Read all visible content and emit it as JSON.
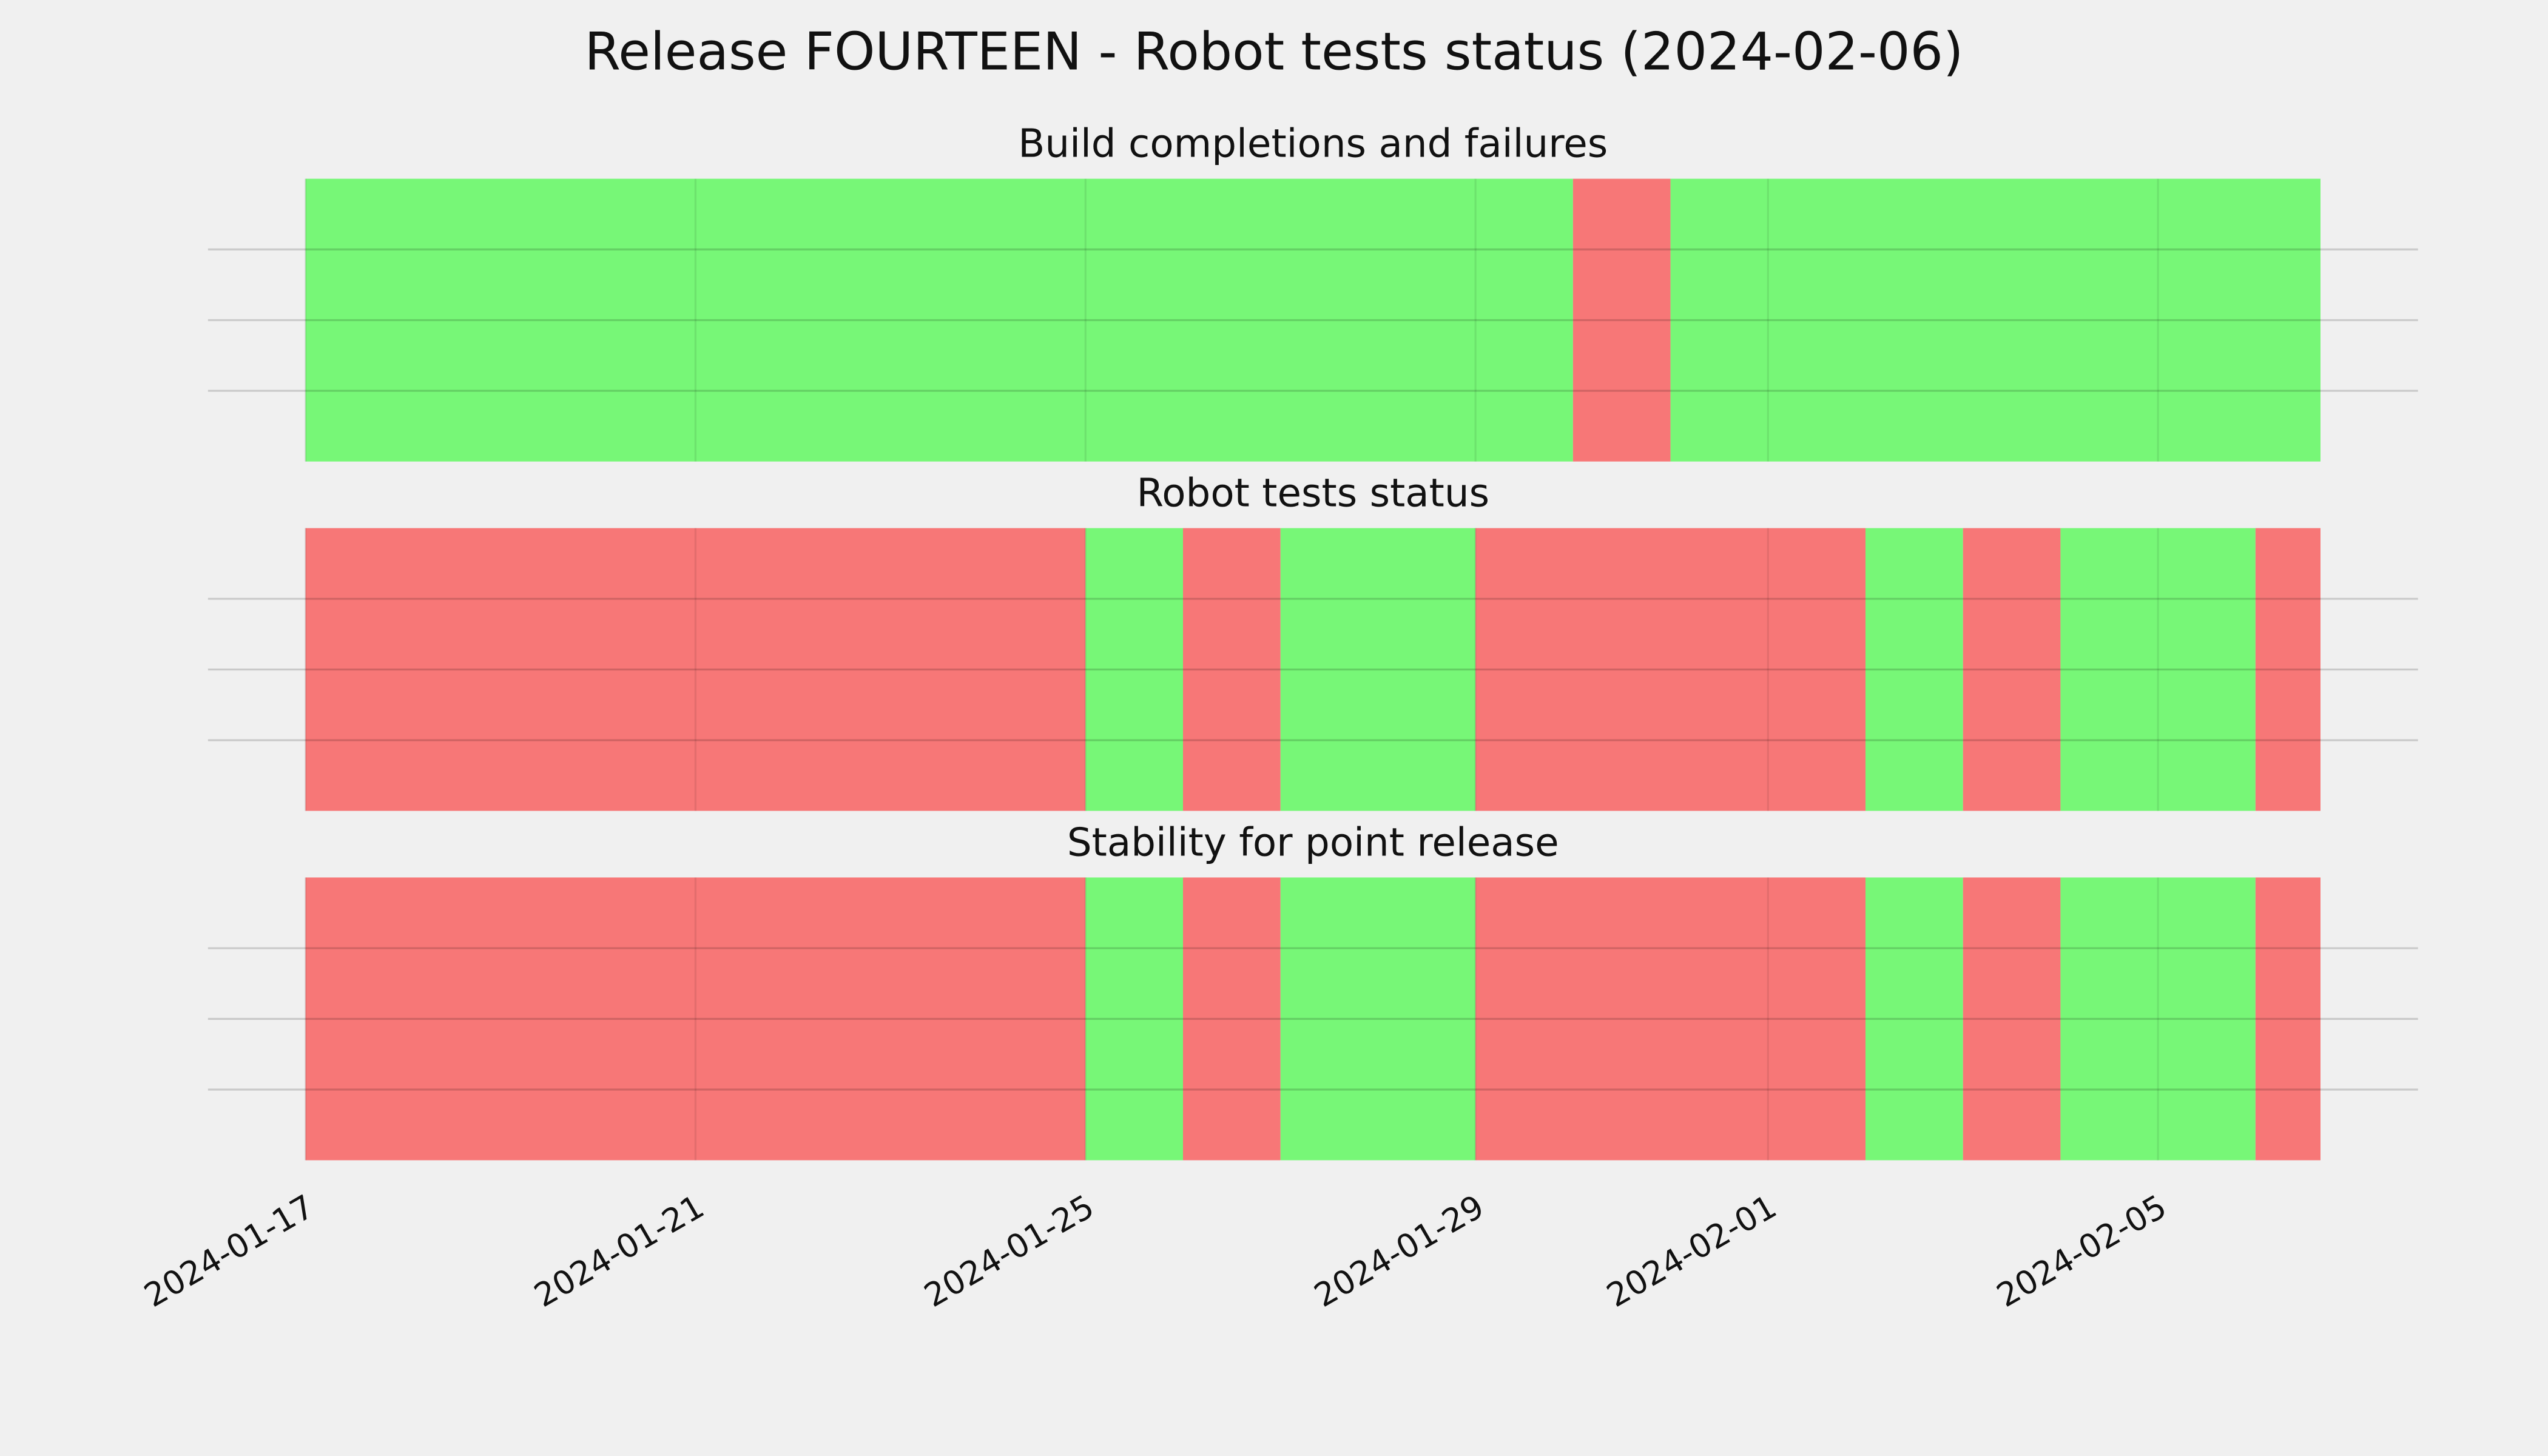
{
  "chart_data": [
    {
      "type": "timeline",
      "title": "Release FOURTEEN - Robot tests status (2024-02-06)",
      "subtitle": "Build completions and failures",
      "xlim": [
        "2024-01-16T00:00",
        "2024-02-07T16:00"
      ],
      "xticks": [
        "2024-01-17",
        "2024-01-21",
        "2024-01-25",
        "2024-01-29",
        "2024-02-01",
        "2024-02-05"
      ],
      "ylim": [
        0,
        1
      ],
      "yticks": [
        0.25,
        0.5,
        0.75
      ],
      "grid": true,
      "periods": [
        {
          "start": "2024-01-17",
          "end": "2024-01-30",
          "color": "#77f777"
        },
        {
          "start": "2024-01-30",
          "end": "2024-01-31",
          "color": "#f77777"
        },
        {
          "start": "2024-01-31",
          "end": "2024-02-06T16:00",
          "color": "#77f777"
        }
      ]
    },
    {
      "type": "timeline",
      "subtitle": "Robot tests status",
      "xlim": [
        "2024-01-16T00:00",
        "2024-02-07T16:00"
      ],
      "xticks": [
        "2024-01-17",
        "2024-01-21",
        "2024-01-25",
        "2024-01-29",
        "2024-02-01",
        "2024-02-05"
      ],
      "ylim": [
        0,
        1
      ],
      "yticks": [
        0.25,
        0.5,
        0.75
      ],
      "grid": true,
      "periods": [
        {
          "start": "2024-01-17",
          "end": "2024-01-25",
          "color": "#f77777"
        },
        {
          "start": "2024-01-25",
          "end": "2024-01-26",
          "color": "#77f777"
        },
        {
          "start": "2024-01-26",
          "end": "2024-01-27",
          "color": "#f77777"
        },
        {
          "start": "2024-01-27",
          "end": "2024-01-29",
          "color": "#77f777"
        },
        {
          "start": "2024-01-29",
          "end": "2024-02-02",
          "color": "#f77777"
        },
        {
          "start": "2024-02-02",
          "end": "2024-02-03",
          "color": "#77f777"
        },
        {
          "start": "2024-02-03",
          "end": "2024-02-04",
          "color": "#f77777"
        },
        {
          "start": "2024-02-04",
          "end": "2024-02-06",
          "color": "#77f777"
        },
        {
          "start": "2024-02-06",
          "end": "2024-02-06T16:00",
          "color": "#f77777"
        }
      ]
    },
    {
      "type": "timeline",
      "subtitle": "Stability for point release",
      "xlim": [
        "2024-01-16T00:00",
        "2024-02-07T16:00"
      ],
      "xticks": [
        "2024-01-17",
        "2024-01-21",
        "2024-01-25",
        "2024-01-29",
        "2024-02-01",
        "2024-02-05"
      ],
      "ylim": [
        0,
        1
      ],
      "yticks": [
        0.25,
        0.5,
        0.75
      ],
      "grid": true,
      "show_xtick_labels": true,
      "periods": [
        {
          "start": "2024-01-17",
          "end": "2024-01-25",
          "color": "#f77777"
        },
        {
          "start": "2024-01-25",
          "end": "2024-01-26",
          "color": "#77f777"
        },
        {
          "start": "2024-01-26",
          "end": "2024-01-27",
          "color": "#f77777"
        },
        {
          "start": "2024-01-27",
          "end": "2024-01-29",
          "color": "#77f777"
        },
        {
          "start": "2024-01-29",
          "end": "2024-02-02",
          "color": "#f77777"
        },
        {
          "start": "2024-02-02",
          "end": "2024-02-03",
          "color": "#77f777"
        },
        {
          "start": "2024-02-03",
          "end": "2024-02-04",
          "color": "#f77777"
        },
        {
          "start": "2024-02-04",
          "end": "2024-02-06",
          "color": "#77f777"
        },
        {
          "start": "2024-02-06",
          "end": "2024-02-06T16:00",
          "color": "#f77777"
        }
      ]
    }
  ]
}
